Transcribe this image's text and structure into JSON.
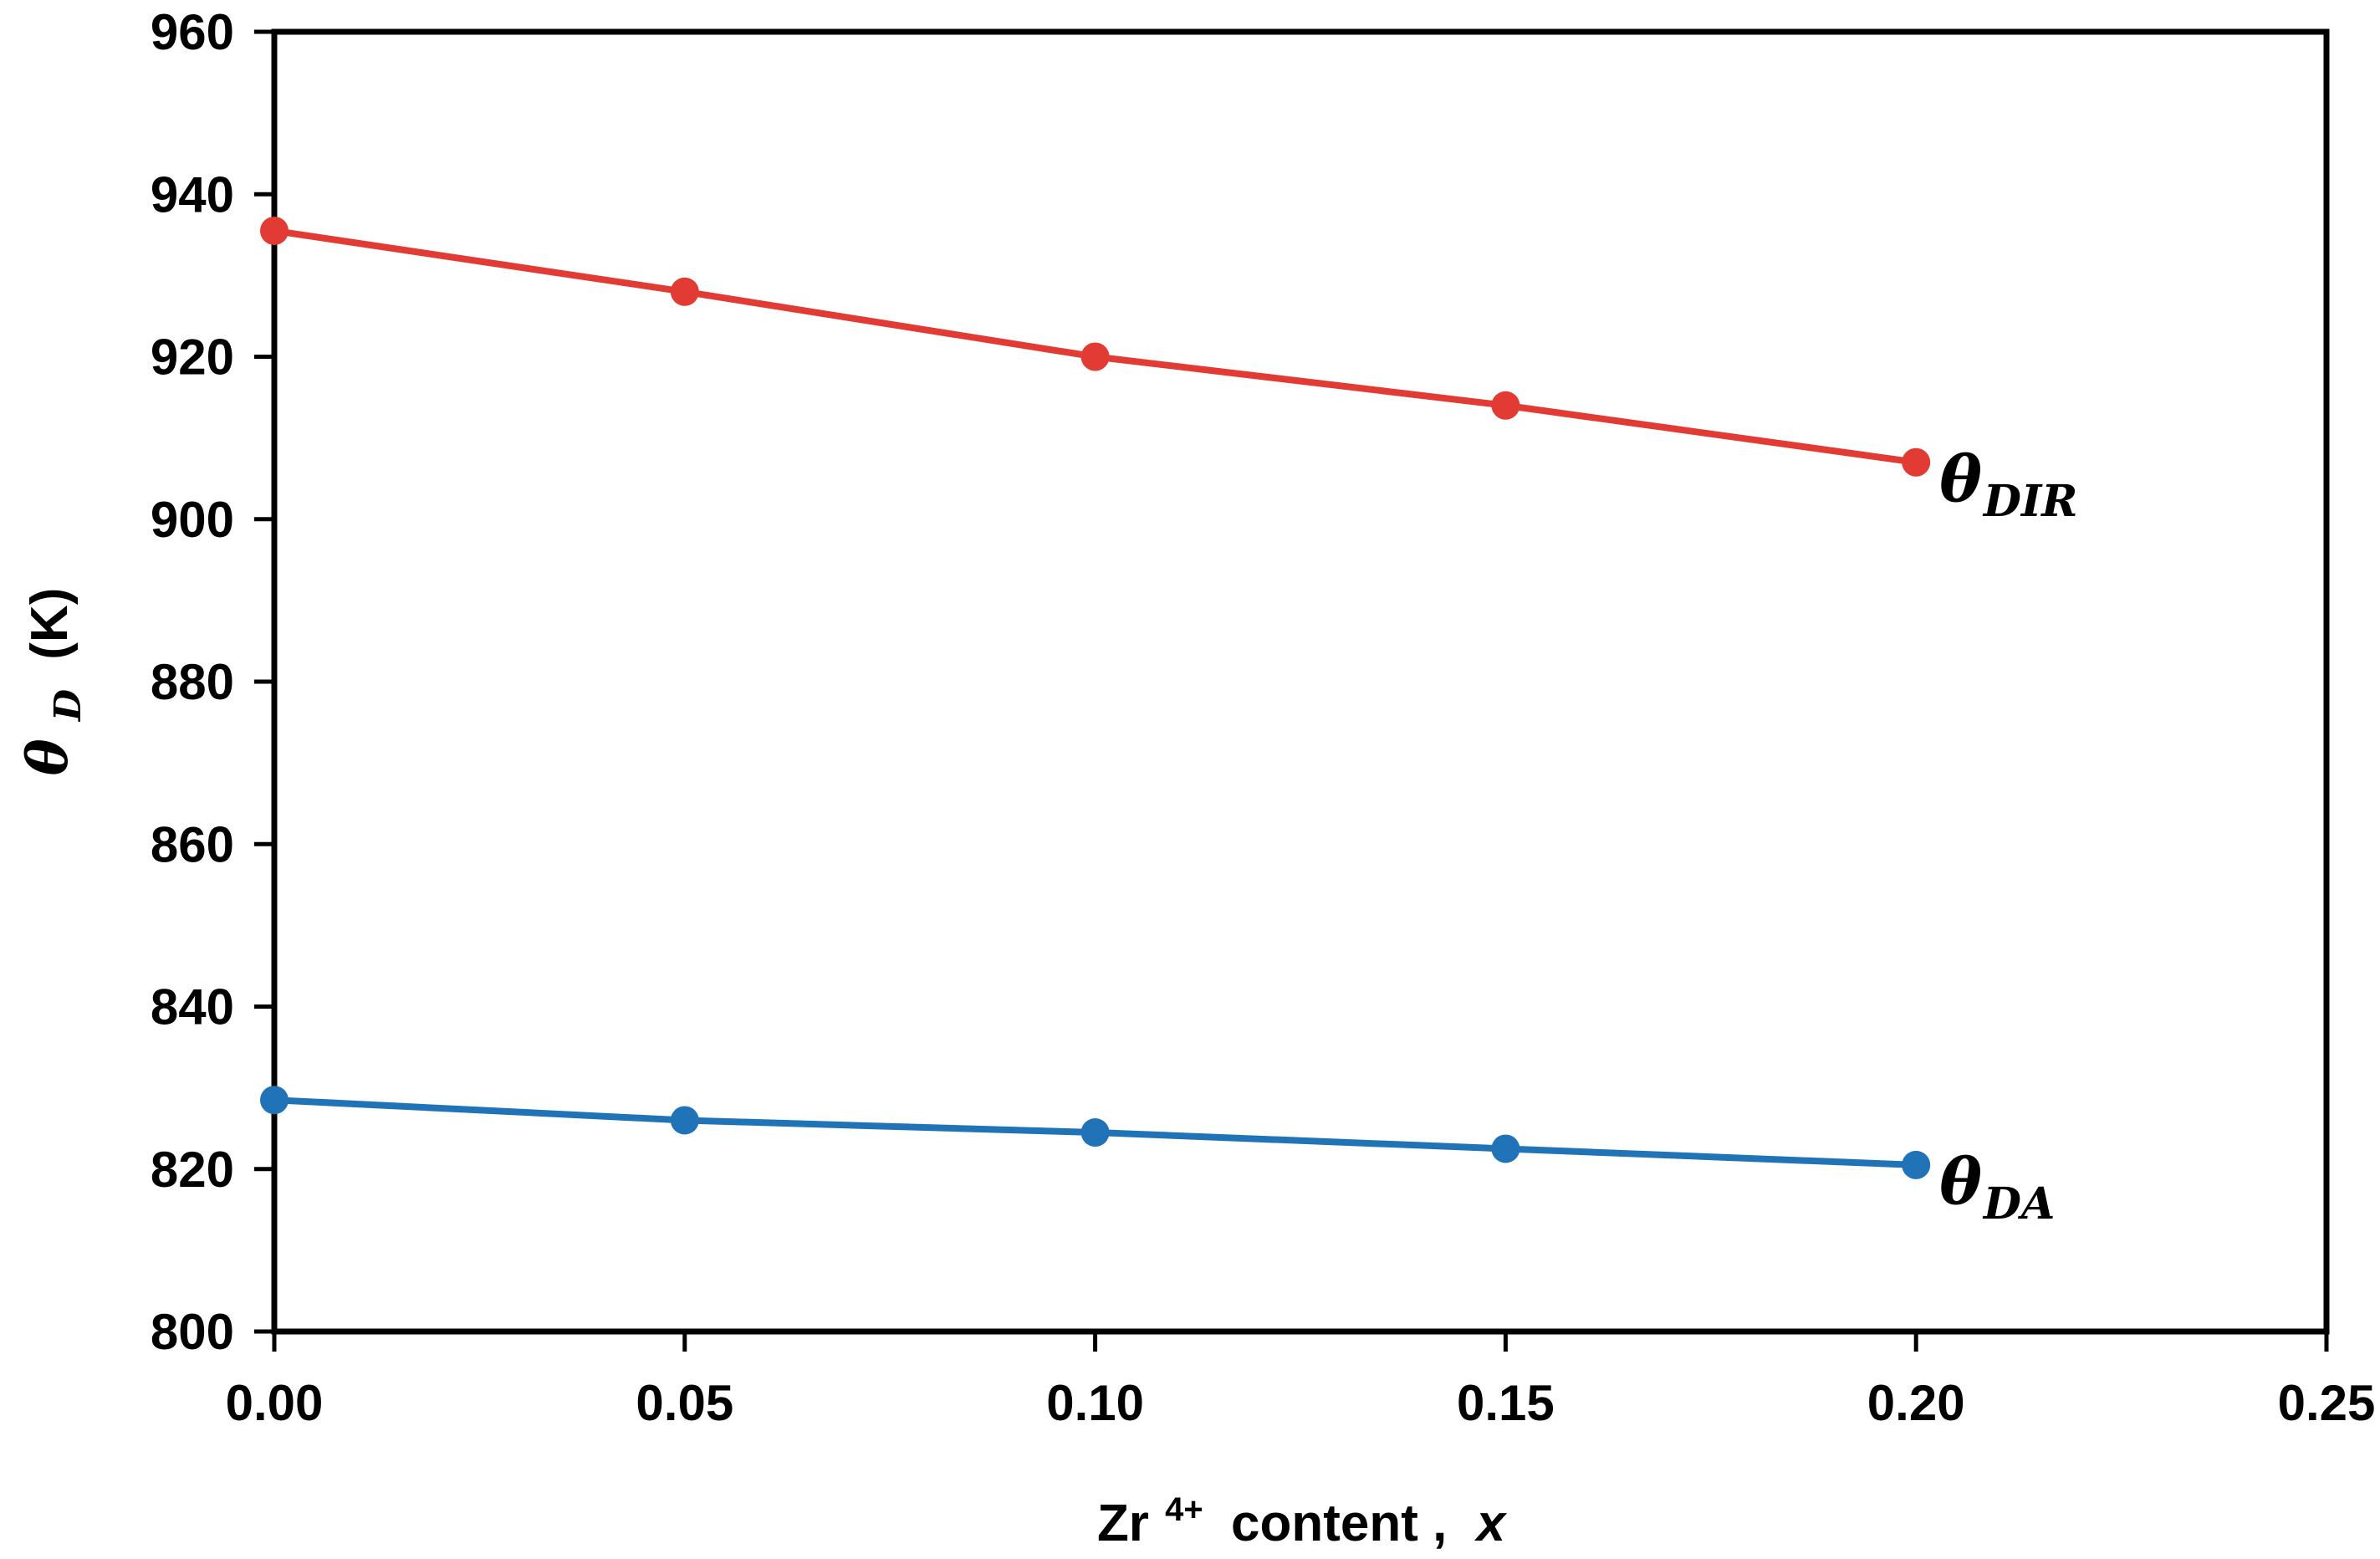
{
  "figure": {
    "background_color": "#ffffff",
    "axis_color": "#000000",
    "text_color": "#000000"
  },
  "axes": {
    "y_title": {
      "symbol": "θ",
      "subscript": "D",
      "unit": "(K)"
    },
    "x_title": {
      "element": "Zr",
      "superscript": "4+",
      "text": "content ,",
      "variable": "x"
    }
  },
  "chart_data": {
    "type": "line",
    "title": "",
    "xlabel": "Zr4+ content , x",
    "ylabel": "θD (K)",
    "xlim": [
      0,
      0.25
    ],
    "ylim": [
      800,
      960
    ],
    "grid": false,
    "legend_position": "inline labels at end of each line",
    "x_ticks": {
      "values": [
        0,
        0.05,
        0.1,
        0.15,
        0.2,
        0.25
      ],
      "labels": [
        "0.00",
        "0.05",
        "0.10",
        "0.15",
        "0.20",
        "0.25"
      ]
    },
    "y_ticks": {
      "values": [
        800,
        820,
        840,
        860,
        880,
        900,
        920,
        940,
        960
      ],
      "labels": [
        "800",
        "820",
        "840",
        "860",
        "880",
        "900",
        "920",
        "940",
        "960"
      ]
    },
    "x": [
      0,
      0.05,
      0.1,
      0.15,
      0.2
    ],
    "series": [
      {
        "id": "dir",
        "name": "θ_DIR",
        "label_symbol": "θ",
        "label_subscript": "DIR",
        "color": "#e23b33",
        "marker": "circle",
        "values": [
          935.5,
          928,
          920,
          914,
          907
        ]
      },
      {
        "id": "da",
        "name": "θ_DA",
        "label_symbol": "θ",
        "label_subscript": "DA",
        "color": "#2173b8",
        "marker": "circle",
        "values": [
          828.5,
          826,
          824.5,
          822.5,
          820.5
        ]
      }
    ]
  }
}
